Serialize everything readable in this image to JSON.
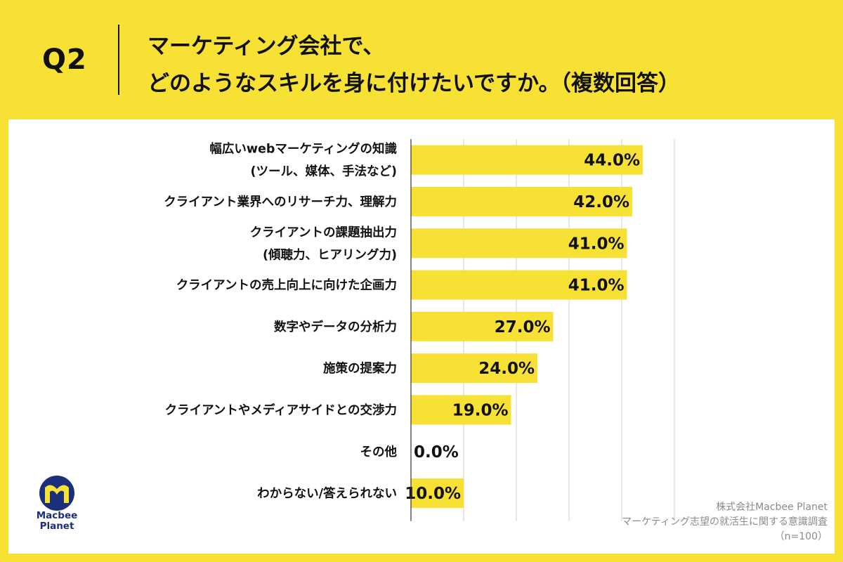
{
  "header": {
    "q_label": "Q2",
    "title_line1": "マーケティング会社で、",
    "title_line2": "どのようなスキルを身に付けたいですか。（複数回答）"
  },
  "colors": {
    "background": "#f7e135",
    "bar": "#f7e135",
    "panel": "#ffffff",
    "grid": "#cfcfcf"
  },
  "chart_data": {
    "type": "bar",
    "orientation": "horizontal",
    "categories": [
      [
        "幅広いwebマーケティングの知識",
        "(ツール、媒体、手法など)"
      ],
      [
        "クライアント業界へのリサーチ力、理解力"
      ],
      [
        "クライアントの課題抽出力",
        "(傾聴力、ヒアリング力)"
      ],
      [
        "クライアントの売上向上に向けた企画力"
      ],
      [
        "数字やデータの分析力"
      ],
      [
        "施策の提案力"
      ],
      [
        "クライアントやメディアサイドとの交渉力"
      ],
      [
        "その他"
      ],
      [
        "わからない/答えられない"
      ]
    ],
    "values": [
      44.0,
      42.0,
      41.0,
      41.0,
      27.0,
      24.0,
      19.0,
      0.0,
      10.0
    ],
    "value_labels": [
      "44.0%",
      "42.0%",
      "41.0%",
      "41.0%",
      "27.0%",
      "24.0%",
      "19.0%",
      "0.0%",
      "10.0%"
    ],
    "xlim": [
      0,
      50
    ],
    "grid": true
  },
  "logo": {
    "line1": "Macbee",
    "line2": "Planet"
  },
  "footer": {
    "line1": "株式会社Macbee Planet",
    "line2": "マーケティング志望の就活生に関する意識調査",
    "line3": "（n=100）"
  }
}
